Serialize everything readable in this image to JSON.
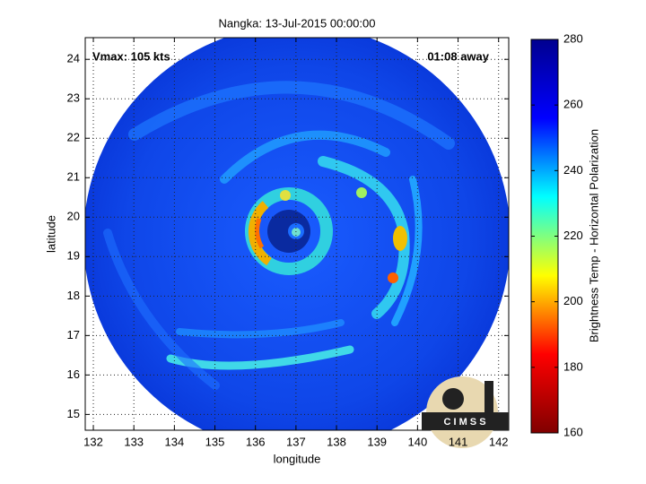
{
  "chart_data": {
    "type": "heatmap",
    "title": "Nangka: 13-Jul-2015 00:00:00",
    "annotations": [
      "Vmax: 105 kts",
      "01:08 away"
    ],
    "x_label": "longitude",
    "y_label": "latitude",
    "xlim": [
      131.8,
      142.25
    ],
    "xticks": [
      132,
      133,
      134,
      135,
      136,
      137,
      138,
      139,
      140,
      141,
      142
    ],
    "ylim": [
      14.6,
      24.55
    ],
    "yticks": [
      15,
      16,
      17,
      18,
      19,
      20,
      21,
      22,
      23,
      24
    ],
    "grid": true,
    "colorbar": {
      "label": "Brightness Temp - Horizontal Polarization",
      "lim": [
        160,
        280
      ],
      "ticks": [
        160,
        180,
        200,
        220,
        240,
        260,
        280
      ],
      "colormap": "jet"
    }
  },
  "logo": "C I M S S"
}
